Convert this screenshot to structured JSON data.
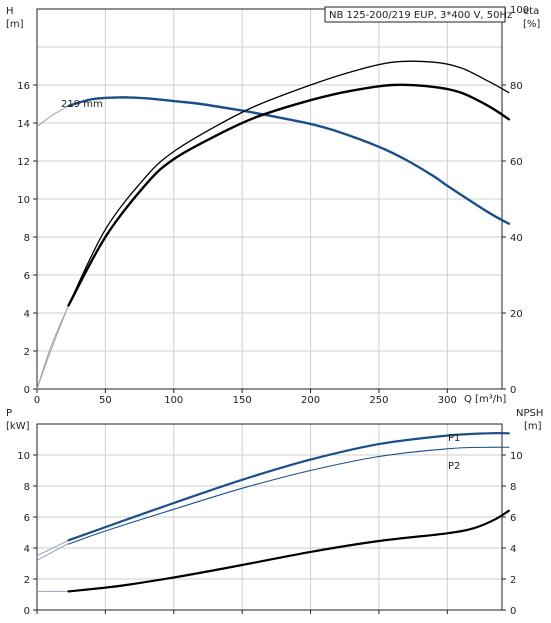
{
  "chart_data": [
    {
      "type": "line",
      "title": "NB 125-200/219 EUP, 3*400 V, 50Hz",
      "y_label": "H",
      "y_unit": "[m]",
      "y2_label": "eta",
      "y2_unit": "[%]",
      "x_label": "Q [m³/h]",
      "xlim": [
        0,
        340
      ],
      "ylim": [
        0,
        20
      ],
      "y2lim": [
        0,
        100
      ],
      "x_ticks": [
        "0",
        "50",
        "100",
        "150",
        "200",
        "250",
        "300"
      ],
      "y_ticks": [
        "0",
        "2",
        "4",
        "6",
        "8",
        "10",
        "12",
        "14",
        "16"
      ],
      "y2_ticks": [
        "0",
        "20",
        "40",
        "60",
        "80",
        "100"
      ],
      "grid": true,
      "annotation": "219 mm",
      "colors": {
        "head": "#1a4f8a",
        "eta": "#000000",
        "ext": "#9aa4b6"
      },
      "series": [
        {
          "role": "head",
          "axis": "left",
          "x": [
            23,
            40,
            60,
            80,
            100,
            120,
            150,
            180,
            200,
            220,
            250,
            270,
            290,
            300,
            330,
            345
          ],
          "y": [
            14.9,
            15.25,
            15.35,
            15.3,
            15.15,
            15.0,
            14.65,
            14.25,
            13.95,
            13.55,
            12.75,
            12.05,
            11.2,
            10.7,
            9.3,
            8.7
          ]
        },
        {
          "role": "eta",
          "axis": "right",
          "x": [
            23,
            50,
            80,
            100,
            130,
            160,
            200,
            230,
            260,
            290,
            310,
            330,
            345
          ],
          "y": [
            22,
            40,
            54,
            60.5,
            66.5,
            71.5,
            76,
            78.5,
            80,
            79.5,
            78,
            74.5,
            71
          ]
        },
        {
          "role": "eta",
          "axis": "right",
          "x": [
            23,
            50,
            80,
            100,
            130,
            160,
            200,
            230,
            260,
            290,
            310,
            330,
            345
          ],
          "y": [
            22,
            42,
            56,
            62.5,
            69,
            74.5,
            80,
            83.5,
            86,
            86,
            84.5,
            81,
            78
          ]
        }
      ],
      "extensions": [
        {
          "role": "ext",
          "axis": "left",
          "x": [
            0,
            10,
            23
          ],
          "y": [
            13.8,
            14.35,
            14.9
          ]
        },
        {
          "role": "ext",
          "axis": "right",
          "x": [
            0,
            10,
            23
          ],
          "y": [
            0,
            10,
            22
          ]
        },
        {
          "role": "ext",
          "axis": "right",
          "x": [
            0,
            10,
            23
          ],
          "y": [
            0,
            11,
            22
          ]
        }
      ]
    },
    {
      "type": "line",
      "y_label": "P",
      "y_unit": "[kW]",
      "y2_label": "NPSH",
      "y2_unit": "[m]",
      "xlim": [
        0,
        340
      ],
      "ylim": [
        0,
        12
      ],
      "y2lim": [
        0,
        12
      ],
      "y_ticks": [
        "0",
        "2",
        "4",
        "6",
        "8",
        "10"
      ],
      "y2_ticks": [
        "0",
        "2",
        "4",
        "6",
        "8",
        "10"
      ],
      "grid": true,
      "colors": {
        "P1": "#1a4f8a",
        "P2": "#1a4f8a",
        "NPSH": "#000000",
        "ext": "#9aa4b6"
      },
      "series": [
        {
          "name": "P1",
          "axis": "left",
          "width": 2.2,
          "x": [
            23,
            50,
            100,
            150,
            200,
            250,
            300,
            330,
            345
          ],
          "y": [
            4.5,
            5.35,
            6.9,
            8.4,
            9.7,
            10.7,
            11.25,
            11.4,
            11.4
          ]
        },
        {
          "name": "P2",
          "axis": "left",
          "width": 1.1,
          "x": [
            23,
            50,
            100,
            150,
            200,
            250,
            300,
            330,
            345
          ],
          "y": [
            4.25,
            5.1,
            6.5,
            7.85,
            9.0,
            9.9,
            10.4,
            10.5,
            10.5
          ]
        },
        {
          "role": "NPSH",
          "axis": "right",
          "width": 2.2,
          "x": [
            23,
            60,
            100,
            150,
            200,
            250,
            300,
            320,
            335,
            345
          ],
          "y": [
            1.2,
            1.55,
            2.1,
            2.9,
            3.75,
            4.45,
            4.95,
            5.3,
            5.85,
            6.4
          ]
        }
      ],
      "extensions": [
        {
          "role": "ext",
          "axis": "left",
          "x": [
            0,
            23
          ],
          "y": [
            3.2,
            4.3
          ]
        },
        {
          "role": "ext",
          "axis": "left",
          "x": [
            0,
            23
          ],
          "y": [
            3.5,
            4.5
          ]
        },
        {
          "role": "ext",
          "axis": "right",
          "x": [
            0,
            23
          ],
          "y": [
            1.2,
            1.2
          ]
        }
      ]
    }
  ]
}
